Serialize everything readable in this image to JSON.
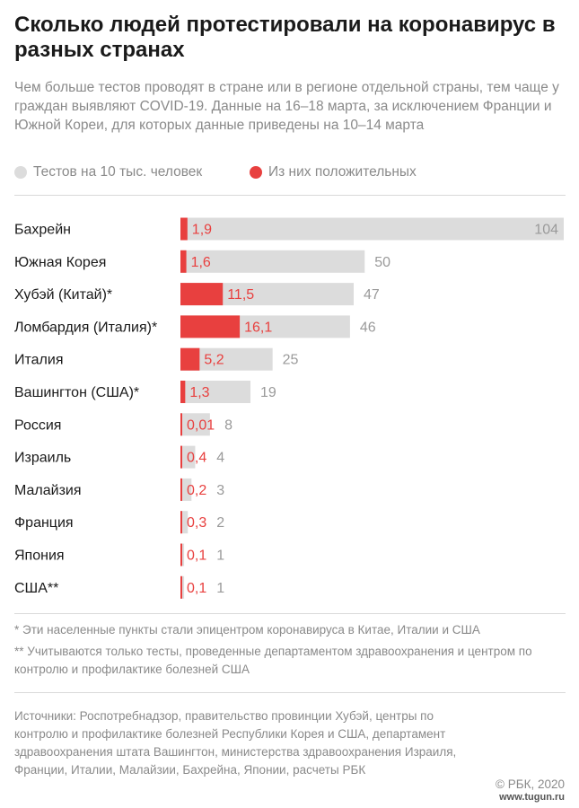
{
  "header": {
    "title": "Сколько людей протестировали на коронавирус в разных странах",
    "subtitle": "Чем больше тестов проводят в стране или в регионе отдельной страны, тем чаще у граждан выявляют COVID-19. Данные на 16–18 марта, за исключением Франции и Южной Кореи, для которых данные приведены на 10–14 марта"
  },
  "legend": {
    "tests_label": "Тестов на 10 тыс. человек",
    "positive_label": "Из них положительных"
  },
  "colors": {
    "tests": "#dcdcdc",
    "positive": "#e8403f",
    "text": "#1a1a1a",
    "muted": "#8a8a8a"
  },
  "chart_data": {
    "type": "bar",
    "orientation": "horizontal",
    "categories": [
      "Бахрейн",
      "Южная Корея",
      "Хубэй (Китай)*",
      "Ломбардия (Италия)*",
      "Италия",
      "Вашингтон (США)*",
      "Россия",
      "Израиль",
      "Малайзия",
      "Франция",
      "Япония",
      "США**"
    ],
    "series": [
      {
        "name": "Тестов на 10 тыс. человек",
        "values": [
          104,
          50,
          47,
          46,
          25,
          19,
          8,
          4,
          3,
          2,
          1,
          1
        ],
        "labels": [
          "104",
          "50",
          "47",
          "46",
          "25",
          "19",
          "8",
          "4",
          "3",
          "2",
          "1",
          "1"
        ]
      },
      {
        "name": "Из них положительных",
        "values": [
          1.9,
          1.6,
          11.5,
          16.1,
          5.2,
          1.3,
          0.01,
          0.4,
          0.2,
          0.3,
          0.1,
          0.1
        ],
        "labels": [
          "1,9",
          "1,6",
          "11,5",
          "16,1",
          "5,2",
          "1,3",
          "0,01",
          "0,4",
          "0,2",
          "0,3",
          "0,1",
          "0,1"
        ]
      }
    ],
    "xlim": [
      0,
      104
    ],
    "grid": false,
    "legend": "top-left"
  },
  "notes": [
    "* Эти населенные пункты стали эпицентром коронавируса в Китае, Италии и США",
    "** Учитываются только тесты, проведенные департаментом здравоохранения и центром по контролю и профилактике болезней США"
  ],
  "sources": "Источники: Роспотребнадзор, правительство провинции Хубэй, центры по контролю и профилактике болезней Республики Корея и США, департамент здравоохранения штата Вашингтон, министерства здравоохранения Израиля, Франции, Италии, Малайзии, Бахрейна, Японии, расчеты РБК",
  "copyright": "© РБК, 2020",
  "watermark": "www.tugun.ru"
}
